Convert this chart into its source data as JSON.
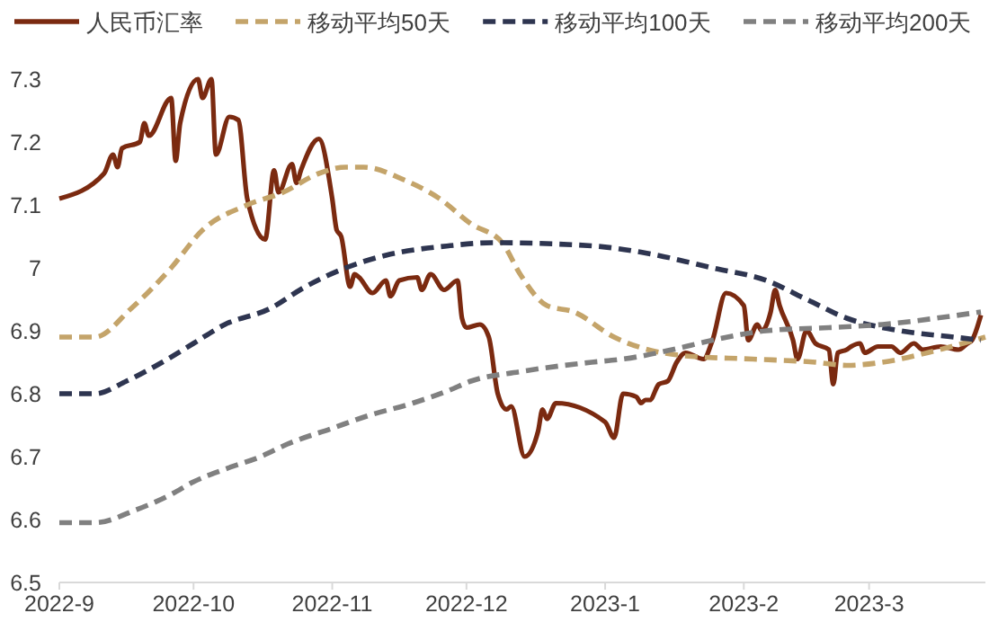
{
  "chart_data": {
    "type": "line",
    "legend": "top",
    "grid": false,
    "marker": "none",
    "xlim": [
      "2022-09-01",
      "2023-03-27"
    ],
    "xticks": [
      {
        "value": "2022-09-01",
        "label": "2022-9"
      },
      {
        "value": "2022-10-01",
        "label": "2022-10"
      },
      {
        "value": "2022-11-01",
        "label": "2022-11"
      },
      {
        "value": "2022-12-01",
        "label": "2022-12"
      },
      {
        "value": "2023-01-01",
        "label": "2023-1"
      },
      {
        "value": "2023-02-01",
        "label": "2023-2"
      },
      {
        "value": "2023-03-01",
        "label": "2023-3"
      }
    ],
    "ylim": [
      6.5,
      7.3
    ],
    "yticks": [
      6.5,
      6.6,
      6.7,
      6.8,
      6.9,
      7,
      7.1,
      7.2,
      7.3
    ],
    "series": [
      {
        "name": "人民币汇率",
        "color": "#7b2a10",
        "line_style": "solid",
        "x": [
          "2022-09-01",
          "2022-09-11",
          "2022-09-13",
          "2022-09-14",
          "2022-09-15",
          "2022-09-19",
          "2022-09-20",
          "2022-09-21",
          "2022-09-26",
          "2022-09-27",
          "2022-09-28",
          "2022-10-02",
          "2022-10-03",
          "2022-10-05",
          "2022-10-06",
          "2022-10-09",
          "2022-10-11",
          "2022-10-13",
          "2022-10-17",
          "2022-10-19",
          "2022-10-20",
          "2022-10-23",
          "2022-10-24",
          "2022-10-25",
          "2022-10-29",
          "2022-11-01",
          "2022-11-02",
          "2022-11-03",
          "2022-11-05",
          "2022-11-06",
          "2022-11-07",
          "2022-11-10",
          "2022-11-13",
          "2022-11-14",
          "2022-11-16",
          "2022-11-20",
          "2022-11-21",
          "2022-11-23",
          "2022-11-26",
          "2022-11-29",
          "2022-11-30",
          "2022-12-01",
          "2022-12-04",
          "2022-12-06",
          "2022-12-08",
          "2022-12-10",
          "2022-12-11",
          "2022-12-14",
          "2022-12-17",
          "2022-12-18",
          "2022-12-19",
          "2022-12-21",
          "2023-01-01",
          "2023-01-03",
          "2023-01-05",
          "2023-01-08",
          "2023-01-09",
          "2023-01-10",
          "2023-01-11",
          "2023-01-13",
          "2023-01-15",
          "2023-01-17",
          "2023-01-19",
          "2023-01-23",
          "2023-01-25",
          "2023-01-28",
          "2023-02-01",
          "2023-02-02",
          "2023-02-04",
          "2023-02-05",
          "2023-02-07",
          "2023-02-08",
          "2023-02-09",
          "2023-02-12",
          "2023-02-13",
          "2023-02-15",
          "2023-02-17",
          "2023-02-20",
          "2023-02-21",
          "2023-02-22",
          "2023-02-24",
          "2023-02-25",
          "2023-02-27",
          "2023-02-28",
          "2023-03-03",
          "2023-03-06",
          "2023-03-08",
          "2023-03-11",
          "2023-03-13",
          "2023-03-17",
          "2023-03-21",
          "2023-03-23",
          "2023-03-24",
          "2023-03-26"
        ],
        "values": [
          7.11,
          7.15,
          7.18,
          7.16,
          7.19,
          7.2,
          7.23,
          7.21,
          7.27,
          7.17,
          7.23,
          7.3,
          7.27,
          7.3,
          7.18,
          7.24,
          7.235,
          7.11,
          7.045,
          7.155,
          7.12,
          7.165,
          7.135,
          7.155,
          7.205,
          7.11,
          7.06,
          7.05,
          6.97,
          6.99,
          6.985,
          6.96,
          6.98,
          6.955,
          6.98,
          6.985,
          6.965,
          6.99,
          6.965,
          6.98,
          6.92,
          6.905,
          6.91,
          6.89,
          6.8,
          6.775,
          6.78,
          6.7,
          6.74,
          6.775,
          6.76,
          6.785,
          6.755,
          6.73,
          6.8,
          6.795,
          6.785,
          6.79,
          6.79,
          6.815,
          6.82,
          6.85,
          6.865,
          6.855,
          6.885,
          6.96,
          6.94,
          6.885,
          6.91,
          6.9,
          6.93,
          6.965,
          6.94,
          6.885,
          6.855,
          6.9,
          6.88,
          6.87,
          6.815,
          6.865,
          6.87,
          6.875,
          6.88,
          6.865,
          6.875,
          6.875,
          6.865,
          6.88,
          6.87,
          6.875,
          6.87,
          6.88,
          6.885,
          6.925
        ]
      },
      {
        "name": "移动平均50天",
        "color": "#c4a46a",
        "line_style": "dashed",
        "x": [
          "2022-09-01",
          "2022-09-09",
          "2022-09-17",
          "2022-09-26",
          "2022-10-03",
          "2022-10-13",
          "2022-10-21",
          "2022-10-29",
          "2022-11-04",
          "2022-11-08",
          "2022-11-17",
          "2022-11-25",
          "2022-12-02",
          "2022-12-09",
          "2022-12-13",
          "2022-12-19",
          "2022-12-25",
          "2023-01-03",
          "2023-01-19",
          "2023-02-03",
          "2023-02-17",
          "2023-02-24",
          "2023-03-04",
          "2023-03-14",
          "2023-03-22",
          "2023-03-27"
        ],
        "values": [
          6.89,
          6.89,
          6.935,
          7.0,
          7.06,
          7.1,
          7.12,
          7.15,
          7.16,
          7.16,
          7.14,
          7.11,
          7.07,
          7.04,
          6.99,
          6.94,
          6.93,
          6.89,
          6.86,
          6.855,
          6.85,
          6.845,
          6.85,
          6.865,
          6.88,
          6.89
        ]
      },
      {
        "name": "移动平均100天",
        "color": "#2e3550",
        "line_style": "dashed",
        "x": [
          "2022-09-01",
          "2022-09-09",
          "2022-09-16",
          "2022-09-24",
          "2022-10-01",
          "2022-10-08",
          "2022-10-18",
          "2022-10-26",
          "2022-11-04",
          "2022-11-13",
          "2022-11-27",
          "2022-12-07",
          "2022-12-29",
          "2023-01-09",
          "2023-01-25",
          "2023-02-06",
          "2023-02-15",
          "2023-02-24",
          "2023-03-08",
          "2023-03-20",
          "2023-03-26"
        ],
        "values": [
          6.8,
          6.8,
          6.82,
          6.85,
          6.88,
          6.91,
          6.935,
          6.97,
          7.0,
          7.02,
          7.035,
          7.04,
          7.035,
          7.025,
          7.0,
          6.98,
          6.95,
          6.92,
          6.9,
          6.89,
          6.885
        ]
      },
      {
        "name": "移动平均200天",
        "color": "#808080",
        "line_style": "dashed",
        "x": [
          "2022-09-01",
          "2022-09-09",
          "2022-09-18",
          "2022-09-26",
          "2022-10-01",
          "2022-10-08",
          "2022-10-16",
          "2022-10-22",
          "2022-11-01",
          "2022-11-09",
          "2022-11-19",
          "2022-11-27",
          "2022-12-02",
          "2022-12-13",
          "2022-12-29",
          "2023-01-05",
          "2023-01-16",
          "2023-01-25",
          "2023-02-06",
          "2023-02-20",
          "2023-03-04",
          "2023-03-16",
          "2023-03-26"
        ],
        "values": [
          6.595,
          6.595,
          6.615,
          6.64,
          6.66,
          6.68,
          6.7,
          6.72,
          6.745,
          6.765,
          6.785,
          6.805,
          6.82,
          6.835,
          6.85,
          6.855,
          6.87,
          6.885,
          6.9,
          6.905,
          6.91,
          6.92,
          6.93
        ]
      }
    ]
  }
}
